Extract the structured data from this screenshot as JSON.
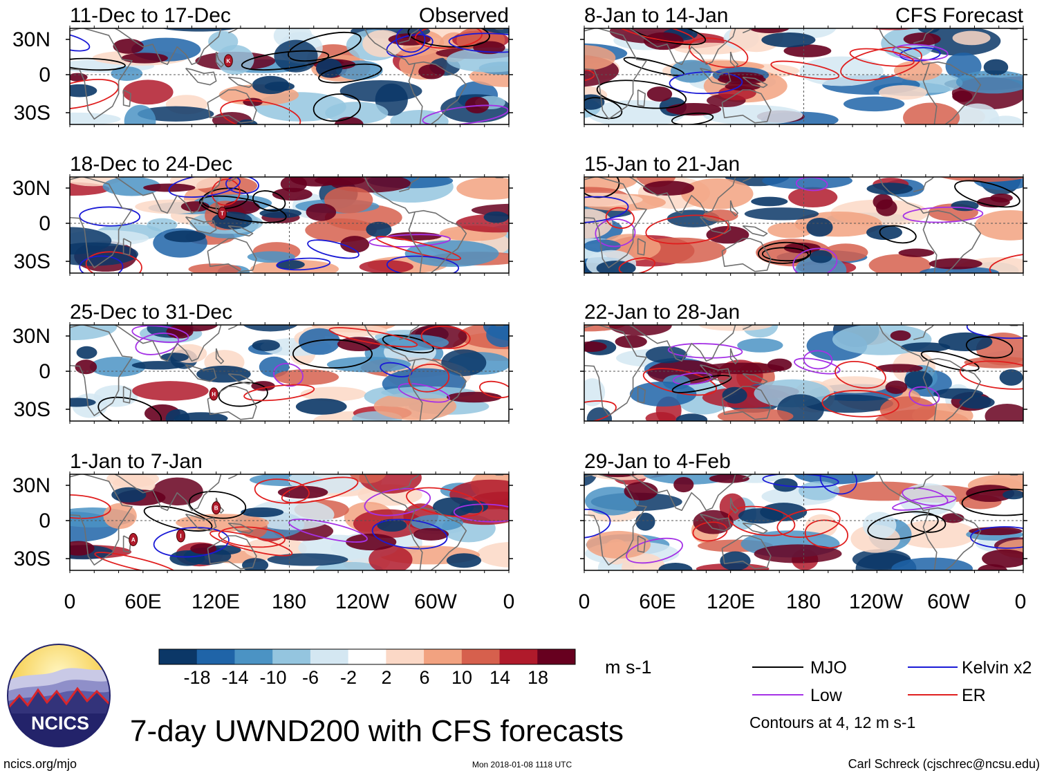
{
  "chart_data": {
    "type": "heatmap",
    "title": "7-day UWND200 with CFS forecasts",
    "variable": "UWND200",
    "units": "m s-1",
    "x_tick_labels": [
      "0",
      "60E",
      "120E",
      "180",
      "120W",
      "60W",
      "0"
    ],
    "y_tick_labels": [
      "30N",
      "0",
      "30S"
    ],
    "lon_range": [
      0,
      360
    ],
    "lat_range": [
      -40,
      40
    ],
    "colorbar": {
      "tick_labels": [
        "-18",
        "-14",
        "-10",
        "-6",
        "-2",
        "2",
        "6",
        "10",
        "14",
        "18"
      ],
      "colors": [
        "#0b3767",
        "#1f64a8",
        "#4b93c4",
        "#94c5df",
        "#d4e7f2",
        "#ffffff",
        "#fbd8c6",
        "#f2a280",
        "#d6604d",
        "#b01a2b",
        "#67001f"
      ]
    },
    "legend": [
      {
        "label": "MJO",
        "color": "#000000"
      },
      {
        "label": "Kelvin x2",
        "color": "#1a1ad6"
      },
      {
        "label": "Low",
        "color": "#a531e6"
      },
      {
        "label": "ER",
        "color": "#e01e1e"
      }
    ],
    "contour_note": "Contours at 4, 12 m s-1",
    "panels": [
      {
        "title": "11-Dec to 17-Dec",
        "tag": "Observed",
        "column": 0,
        "row": 0,
        "seed": 11
      },
      {
        "title": "18-Dec to 24-Dec",
        "tag": "",
        "column": 0,
        "row": 1,
        "seed": 23
      },
      {
        "title": "25-Dec to 31-Dec",
        "tag": "",
        "column": 0,
        "row": 2,
        "seed": 37
      },
      {
        "title": "1-Jan to 7-Jan",
        "tag": "",
        "column": 0,
        "row": 3,
        "seed": 41
      },
      {
        "title": "8-Jan to 14-Jan",
        "tag": "CFS Forecast",
        "column": 1,
        "row": 0,
        "seed": 53
      },
      {
        "title": "15-Jan to 21-Jan",
        "tag": "",
        "column": 1,
        "row": 1,
        "seed": 67
      },
      {
        "title": "22-Jan to 28-Jan",
        "tag": "",
        "column": 1,
        "row": 2,
        "seed": 71
      },
      {
        "title": "29-Jan to 4-Feb",
        "tag": "",
        "column": 1,
        "row": 3,
        "seed": 83
      }
    ],
    "storm_markers": [
      {
        "panel": 0,
        "letter": "K",
        "lon": 130,
        "lat": 11
      },
      {
        "panel": 1,
        "letter": "T",
        "lon": 125,
        "lat": 8
      },
      {
        "panel": 2,
        "letter": "H",
        "lon": 118,
        "lat": -18
      },
      {
        "panel": 3,
        "letter": "B",
        "lon": 120,
        "lat": 10
      },
      {
        "panel": 3,
        "letter": "A",
        "lon": 52,
        "lat": -15
      },
      {
        "panel": 3,
        "letter": "I",
        "lon": 91,
        "lat": -12
      }
    ]
  },
  "logo": {
    "text": "NCICS"
  },
  "footer": {
    "url": "ncics.org/mjo",
    "timestamp": "Mon 2018-01-08 1118 UTC",
    "author": "Carl Schreck (cjschrec@ncsu.edu)"
  }
}
